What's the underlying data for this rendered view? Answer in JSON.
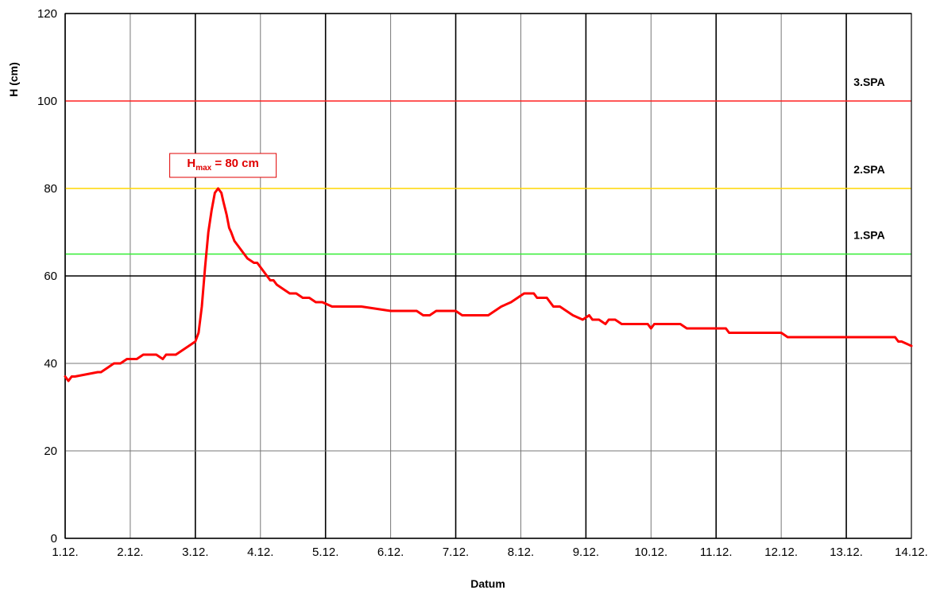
{
  "chart_data": {
    "type": "line",
    "title": "",
    "xlabel": "Datum",
    "ylabel": "H (cm)",
    "xlim": [
      0,
      13
    ],
    "ylim": [
      0,
      120
    ],
    "grid": true,
    "x_ticks": [
      "1.12.",
      "2.12.",
      "3.12.",
      "4.12.",
      "5.12.",
      "6.12.",
      "7.12.",
      "8.12.",
      "9.12.",
      "10.12.",
      "11.12.",
      "12.12.",
      "13.12.",
      "14.12."
    ],
    "y_ticks": [
      0,
      20,
      40,
      60,
      80,
      100,
      120
    ],
    "reference_lines": [
      {
        "label": "3.SPA",
        "value": 100,
        "color": "#ff2020"
      },
      {
        "label": "2.SPA",
        "value": 80,
        "color": "#ffd700"
      },
      {
        "label": "1.SPA",
        "value": 65,
        "color": "#33ee33"
      }
    ],
    "annotation": {
      "main": "H",
      "sub": "max",
      "rest": " = 80 cm",
      "x": 2.4,
      "y": 80,
      "color": "#e00000"
    },
    "series": [
      {
        "color": "#ff0000",
        "x": [
          0.0,
          0.05,
          0.1,
          0.15,
          0.5,
          0.55,
          0.65,
          0.75,
          0.8,
          0.85,
          0.95,
          1.1,
          1.2,
          1.4,
          1.5,
          1.55,
          1.6,
          1.7,
          1.8,
          1.9,
          2.0,
          2.05,
          2.1,
          2.15,
          2.2,
          2.25,
          2.3,
          2.35,
          2.4,
          2.43,
          2.48,
          2.52,
          2.55,
          2.6,
          2.7,
          2.75,
          2.8,
          2.9,
          2.95,
          3.0,
          3.05,
          3.1,
          3.15,
          3.2,
          3.25,
          3.35,
          3.45,
          3.55,
          3.65,
          3.75,
          3.85,
          3.95,
          4.1,
          4.2,
          4.25,
          4.4,
          4.55,
          5.0,
          5.2,
          5.4,
          5.5,
          5.6,
          5.7,
          6.0,
          6.1,
          6.2,
          6.3,
          6.35,
          6.4,
          6.5,
          6.6,
          6.7,
          6.85,
          6.95,
          7.05,
          7.1,
          7.2,
          7.25,
          7.4,
          7.5,
          7.55,
          7.6,
          7.7,
          7.8,
          7.95,
          8.05,
          8.1,
          8.2,
          8.3,
          8.35,
          8.45,
          8.55,
          8.95,
          9.0,
          9.05,
          9.15,
          9.45,
          9.55,
          9.9,
          9.95,
          10.15,
          10.2,
          10.5,
          10.6,
          11.0,
          11.1,
          11.85,
          11.9,
          12.2,
          12.25,
          12.75,
          12.8,
          12.85,
          13.0
        ],
        "y": [
          37,
          36,
          37,
          37,
          38,
          38,
          39,
          40,
          40,
          40,
          41,
          41,
          42,
          42,
          41,
          42,
          42,
          42,
          43,
          44,
          45,
          47,
          53,
          62,
          70,
          75,
          79,
          80,
          79,
          77,
          74,
          71,
          70,
          68,
          66,
          65,
          64,
          63,
          63,
          62,
          61,
          60,
          59,
          59,
          58,
          57,
          56,
          56,
          55,
          55,
          54,
          54,
          53,
          53,
          53,
          53,
          53,
          52,
          52,
          52,
          51,
          51,
          52,
          52,
          51,
          51,
          51,
          51,
          51,
          51,
          52,
          53,
          54,
          55,
          56,
          56,
          56,
          55,
          55,
          53,
          53,
          53,
          52,
          51,
          50,
          51,
          50,
          50,
          49,
          50,
          50,
          49,
          49,
          48,
          49,
          49,
          49,
          48,
          48,
          48,
          48,
          47,
          47,
          47,
          47,
          46,
          46,
          46,
          46,
          46,
          46,
          45,
          45,
          44
        ]
      }
    ]
  }
}
